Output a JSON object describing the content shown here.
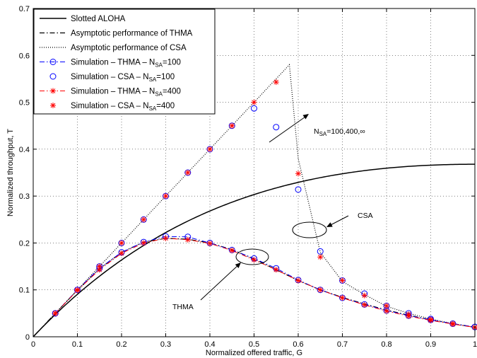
{
  "chart_data": {
    "type": "line",
    "xlabel": "Normalized offered traffic, G",
    "ylabel": "Normalized throughput, T",
    "xlim": [
      0,
      1
    ],
    "ylim": [
      0,
      0.7
    ],
    "xticks": [
      "0",
      "0.1",
      "0.2",
      "0.3",
      "0.4",
      "0.5",
      "0.6",
      "0.7",
      "0.8",
      "0.9",
      "1"
    ],
    "yticks": [
      "0",
      "0.1",
      "0.2",
      "0.3",
      "0.4",
      "0.5",
      "0.6",
      "0.7"
    ],
    "grid": "dotted",
    "legend_position": "top-left",
    "series": [
      {
        "name": "Slotted ALOHA",
        "style": "solid",
        "color": "#000000",
        "function": "G*exp(-G)"
      },
      {
        "name": "Asymptotic performance of THMA",
        "style": "dashdot",
        "color": "#000000",
        "x": [
          0,
          0.05,
          0.1,
          0.15,
          0.2,
          0.25,
          0.3,
          0.35,
          0.4,
          0.45,
          0.5,
          0.55,
          0.6,
          0.65,
          0.7,
          0.75,
          0.8,
          0.85,
          0.9,
          0.95,
          1.0
        ],
        "y": [
          0,
          0.05,
          0.099,
          0.145,
          0.18,
          0.202,
          0.21,
          0.208,
          0.2,
          0.186,
          0.166,
          0.143,
          0.12,
          0.1,
          0.084,
          0.07,
          0.057,
          0.046,
          0.036,
          0.028,
          0.02
        ]
      },
      {
        "name": "Asymptotic performance of CSA",
        "style": "dotted",
        "color": "#000000",
        "x": [
          0,
          0.05,
          0.1,
          0.15,
          0.2,
          0.25,
          0.3,
          0.35,
          0.4,
          0.45,
          0.5,
          0.55,
          0.58,
          0.6,
          0.65,
          0.7,
          0.75,
          0.8,
          0.85,
          0.9,
          0.95,
          1.0
        ],
        "y": [
          0,
          0.05,
          0.1,
          0.15,
          0.2,
          0.25,
          0.3,
          0.35,
          0.4,
          0.45,
          0.5,
          0.55,
          0.58,
          0.38,
          0.18,
          0.118,
          0.09,
          0.065,
          0.05,
          0.038,
          0.028,
          0.02
        ]
      },
      {
        "name": "Simulation – THMA – N_SA=100",
        "marker": "circle",
        "color": "#0000ff",
        "line_style": "dashdot",
        "x": [
          0.05,
          0.1,
          0.15,
          0.2,
          0.25,
          0.3,
          0.35,
          0.4,
          0.45,
          0.5,
          0.55,
          0.6,
          0.65,
          0.7,
          0.75,
          0.8,
          0.85,
          0.9,
          0.95,
          1.0
        ],
        "y": [
          0.05,
          0.1,
          0.146,
          0.18,
          0.202,
          0.214,
          0.213,
          0.2,
          0.185,
          0.167,
          0.146,
          0.121,
          0.1,
          0.083,
          0.069,
          0.056,
          0.045,
          0.036,
          0.028,
          0.021
        ]
      },
      {
        "name": "Simulation – CSA – N_SA=100",
        "marker": "circle",
        "color": "#0000ff",
        "line_style": "none",
        "x": [
          0.05,
          0.1,
          0.15,
          0.2,
          0.25,
          0.3,
          0.35,
          0.4,
          0.45,
          0.5,
          0.55,
          0.6,
          0.65,
          0.7,
          0.75,
          0.8,
          0.85,
          0.9,
          0.95,
          1.0
        ],
        "y": [
          0.05,
          0.1,
          0.15,
          0.2,
          0.25,
          0.3,
          0.35,
          0.4,
          0.45,
          0.487,
          0.447,
          0.314,
          0.182,
          0.12,
          0.092,
          0.066,
          0.05,
          0.038,
          0.028,
          0.021
        ]
      },
      {
        "name": "Simulation – THMA – N_SA=400",
        "marker": "asterisk",
        "color": "#ff0000",
        "line_style": "dashdot",
        "x": [
          0.05,
          0.1,
          0.15,
          0.2,
          0.25,
          0.3,
          0.35,
          0.4,
          0.45,
          0.5,
          0.55,
          0.6,
          0.65,
          0.7,
          0.75,
          0.8,
          0.85,
          0.9,
          0.95,
          1.0
        ],
        "y": [
          0.05,
          0.099,
          0.143,
          0.178,
          0.2,
          0.21,
          0.207,
          0.199,
          0.184,
          0.164,
          0.143,
          0.12,
          0.1,
          0.083,
          0.068,
          0.055,
          0.044,
          0.035,
          0.027,
          0.02
        ]
      },
      {
        "name": "Simulation – CSA – N_SA=400",
        "marker": "asterisk",
        "color": "#ff0000",
        "line_style": "none",
        "x": [
          0.05,
          0.1,
          0.15,
          0.2,
          0.25,
          0.3,
          0.35,
          0.4,
          0.45,
          0.5,
          0.55,
          0.6,
          0.65,
          0.7,
          0.75,
          0.8,
          0.85,
          0.9,
          0.95,
          1.0
        ],
        "y": [
          0.05,
          0.1,
          0.15,
          0.2,
          0.25,
          0.3,
          0.35,
          0.4,
          0.45,
          0.5,
          0.543,
          0.348,
          0.17,
          0.12,
          0.088,
          0.066,
          0.048,
          0.037,
          0.028,
          0.02
        ]
      }
    ],
    "legend": [
      {
        "prefix": "Slotted ALOHA",
        "sub": "",
        "suffix": ""
      },
      {
        "prefix": "Asymptotic performance of THMA",
        "sub": "",
        "suffix": ""
      },
      {
        "prefix": "Asymptotic performance of CSA",
        "sub": "",
        "suffix": ""
      },
      {
        "prefix": "Simulation – THMA – N",
        "sub": "SA",
        "suffix": "=100"
      },
      {
        "prefix": "Simulation – CSA – N",
        "sub": "SA",
        "suffix": "=100"
      },
      {
        "prefix": "Simulation – THMA – N",
        "sub": "SA",
        "suffix": "=400"
      },
      {
        "prefix": "Simulation – CSA – N",
        "sub": "SA",
        "suffix": "=400"
      }
    ],
    "annotations": {
      "nsa": {
        "prefix": "N",
        "sub": "SA",
        "suffix": "=100,400,∞"
      },
      "csa": "CSA",
      "thma": "THMA"
    }
  }
}
